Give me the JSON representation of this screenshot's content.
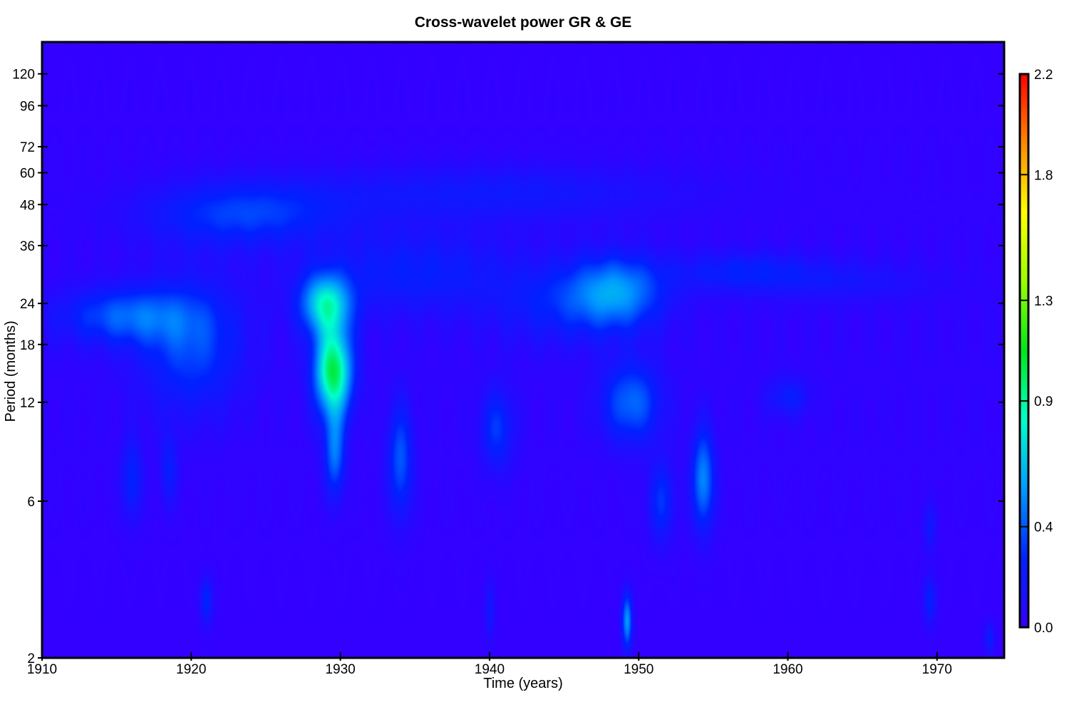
{
  "chart_data": {
    "type": "heatmap",
    "title": "Cross-wavelet power GR & GE",
    "xlabel": "Time (years)",
    "ylabel": "Period (months)",
    "xlim": [
      1910,
      1974.5
    ],
    "ylim": [
      2,
      150
    ],
    "y_scale": "log",
    "x_ticks": [
      1910,
      1920,
      1930,
      1940,
      1950,
      1960,
      1970
    ],
    "y_ticks": [
      2,
      6,
      12,
      18,
      24,
      36,
      48,
      60,
      72,
      96,
      120
    ],
    "colorbar": {
      "range": [
        0,
        2.2
      ],
      "ticks": [
        0.0,
        0.4,
        0.9,
        1.3,
        1.8,
        2.2
      ],
      "tick_labels": [
        "0.0",
        "0.4",
        "0.9",
        "1.3",
        "1.8",
        "2.2"
      ],
      "colormap": [
        "#3300ff",
        "#0022ff",
        "#0099ff",
        "#00ffcc",
        "#00e61a",
        "#99ff00",
        "#ffff00",
        "#ff8800",
        "#ff0000"
      ]
    },
    "background_color": "#3300ff",
    "grid": false,
    "power_features": [
      {
        "time": 1929.5,
        "period": 15,
        "power": 1.0,
        "t_width": 0.9,
        "p_spread": 0.22
      },
      {
        "time": 1929.0,
        "period": 24,
        "power": 0.72,
        "t_width": 1.2,
        "p_spread": 0.15
      },
      {
        "time": 1929.6,
        "period": 8.5,
        "power": 0.45,
        "t_width": 0.5,
        "p_spread": 0.22
      },
      {
        "time": 1948.5,
        "period": 26,
        "power": 0.5,
        "t_width": 2.2,
        "p_spread": 0.18
      },
      {
        "time": 1949.5,
        "period": 12,
        "power": 0.42,
        "t_width": 1.4,
        "p_spread": 0.2
      },
      {
        "time": 1954.3,
        "period": 7,
        "power": 0.5,
        "t_width": 0.55,
        "p_spread": 0.25
      },
      {
        "time": 1949.2,
        "period": 2.6,
        "power": 0.55,
        "t_width": 0.25,
        "p_spread": 0.14
      },
      {
        "time": 1934.0,
        "period": 8,
        "power": 0.38,
        "t_width": 0.6,
        "p_spread": 0.28
      },
      {
        "time": 1915.5,
        "period": 22,
        "power": 0.38,
        "t_width": 3.0,
        "p_spread": 0.14
      },
      {
        "time": 1920.0,
        "period": 18,
        "power": 0.34,
        "t_width": 2.4,
        "p_spread": 0.32
      },
      {
        "time": 1923.5,
        "period": 45,
        "power": 0.32,
        "t_width": 4.5,
        "p_spread": 0.16
      },
      {
        "time": 1940.5,
        "period": 10,
        "power": 0.3,
        "t_width": 0.8,
        "p_spread": 0.2
      },
      {
        "time": 1916.0,
        "period": 7,
        "power": 0.26,
        "t_width": 0.5,
        "p_spread": 0.2
      },
      {
        "time": 1921.0,
        "period": 3.0,
        "power": 0.28,
        "t_width": 0.3,
        "p_spread": 0.12
      },
      {
        "time": 1969.5,
        "period": 3.0,
        "power": 0.26,
        "t_width": 0.3,
        "p_spread": 0.12
      },
      {
        "time": 1969.5,
        "period": 5.0,
        "power": 0.18,
        "t_width": 0.3,
        "p_spread": 0.12
      },
      {
        "time": 1951.5,
        "period": 6.0,
        "power": 0.3,
        "t_width": 0.6,
        "p_spread": 0.2
      },
      {
        "time": 1960.0,
        "period": 12.5,
        "power": 0.2,
        "t_width": 1.0,
        "p_spread": 0.1
      },
      {
        "time": 1940.0,
        "period": 52,
        "power": 0.18,
        "t_width": 9.0,
        "p_spread": 0.14
      },
      {
        "time": 1935.0,
        "period": 30,
        "power": 0.22,
        "t_width": 4.5,
        "p_spread": 0.2
      },
      {
        "time": 1944.5,
        "period": 24,
        "power": 0.2,
        "t_width": 3.0,
        "p_spread": 0.2
      },
      {
        "time": 1957.0,
        "period": 30,
        "power": 0.22,
        "t_width": 3.5,
        "p_spread": 0.1
      },
      {
        "time": 1964.0,
        "period": 28,
        "power": 0.12,
        "t_width": 4.0,
        "p_spread": 0.1
      },
      {
        "time": 1918.5,
        "period": 7.5,
        "power": 0.22,
        "t_width": 0.4,
        "p_spread": 0.18
      },
      {
        "time": 1973.5,
        "period": 2.3,
        "power": 0.22,
        "t_width": 0.25,
        "p_spread": 0.08
      },
      {
        "time": 1940.0,
        "period": 2.8,
        "power": 0.18,
        "t_width": 0.25,
        "p_spread": 0.15
      }
    ]
  }
}
